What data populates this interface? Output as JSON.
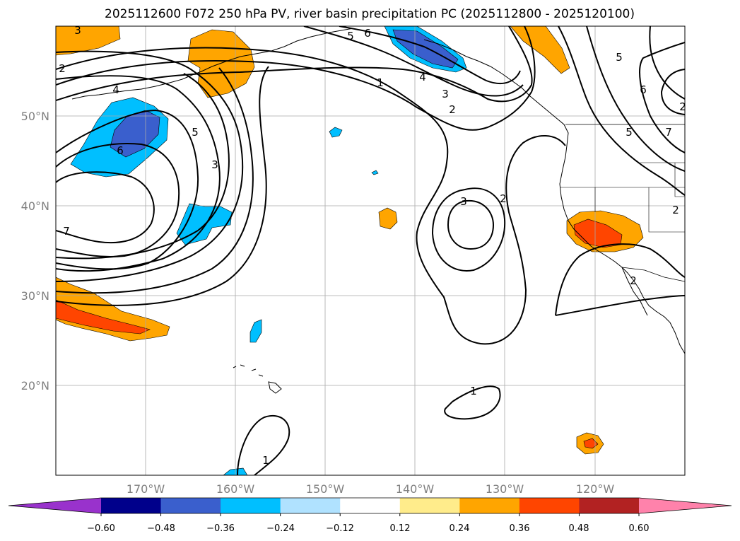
{
  "title": "2025112600 F072 250 hPa PV, river basin precipitation PC (2025112800 - 2025120100)",
  "map": {
    "projection": "PlateCarree",
    "lon_range": [
      -180,
      -110
    ],
    "lat_range": [
      10,
      60
    ],
    "lat_ticks": [
      20,
      30,
      40,
      50
    ],
    "lat_tick_labels": [
      "20°N",
      "30°N",
      "40°N",
      "50°N"
    ],
    "lon_ticks": [
      -170,
      -160,
      -150,
      -140,
      -130,
      -120
    ],
    "lon_tick_labels": [
      "170°W",
      "160°W",
      "150°W",
      "140°W",
      "130°W",
      "120°W"
    ],
    "gridlines": true,
    "contour_variable": "250 hPa PV",
    "contour_label_values": [
      "3",
      "2",
      "4",
      "6",
      "5",
      "3",
      "7",
      "5",
      "6",
      "4",
      "3",
      "2",
      "1",
      "5",
      "6",
      "2",
      "7",
      "5",
      "3",
      "2",
      "2",
      "1",
      "1",
      "2"
    ],
    "fill_variable": "river basin precipitation PC"
  },
  "colorbar": {
    "tick_labels": [
      "−0.60",
      "−0.48",
      "−0.36",
      "−0.24",
      "−0.12",
      "0.12",
      "0.24",
      "0.36",
      "0.48",
      "0.60"
    ],
    "levels": [
      -0.6,
      -0.48,
      -0.36,
      -0.24,
      -0.12,
      0.12,
      0.24,
      0.36,
      0.48,
      0.6
    ],
    "colors": [
      "#9932cc",
      "#00008b",
      "#3a5fcd",
      "#00bfff",
      "#b0e2ff",
      "#ffffff",
      "#ffec8b",
      "#ffa500",
      "#ff4500",
      "#b22222",
      "#ff82ab"
    ],
    "extend": "both"
  }
}
